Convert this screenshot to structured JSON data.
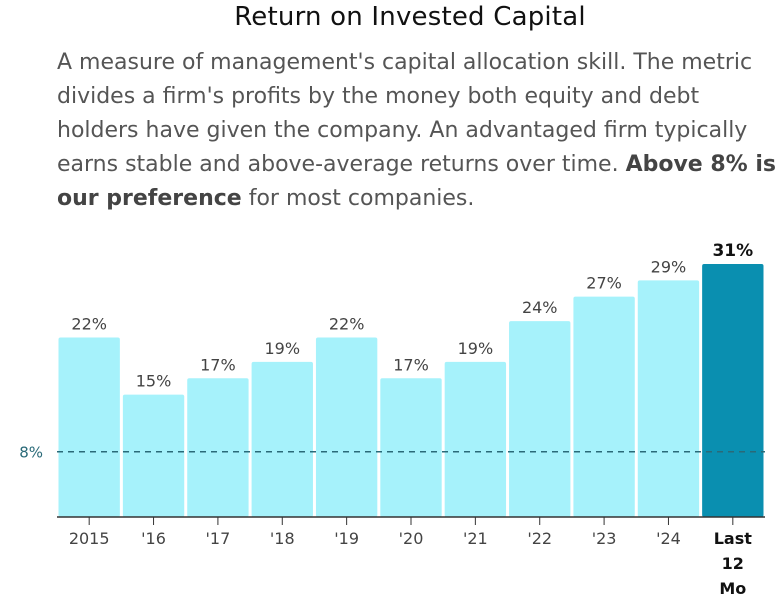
{
  "header": {
    "title": "Return on Invested Capital",
    "desc_prefix": "A measure of management's capital allocation skill. The metric divides a firm's profits by the money both equity and debt holders have given the company. An advantaged firm typically earns stable and above-average returns over time. ",
    "desc_bold": "Above 8% is our preference",
    "desc_suffix": " for most companies."
  },
  "colors": {
    "bar": "#a6f2fb",
    "highlight_bar": "#0a8fb0",
    "reference_line": "#2a6a78",
    "axis": "#333333"
  },
  "chart_data": {
    "type": "bar",
    "categories": [
      "2015",
      "'16",
      "'17",
      "'18",
      "'19",
      "'20",
      "'21",
      "'22",
      "'23",
      "'24",
      "Last 12 Mo"
    ],
    "values": [
      22,
      15,
      17,
      19,
      22,
      17,
      19,
      24,
      27,
      29,
      31
    ],
    "value_labels": [
      "22%",
      "15%",
      "17%",
      "19%",
      "22%",
      "17%",
      "19%",
      "24%",
      "27%",
      "29%",
      "31%"
    ],
    "highlight_index": 10,
    "reference_line": {
      "value": 8,
      "label": "8%"
    },
    "ylim": [
      0,
      31
    ]
  }
}
